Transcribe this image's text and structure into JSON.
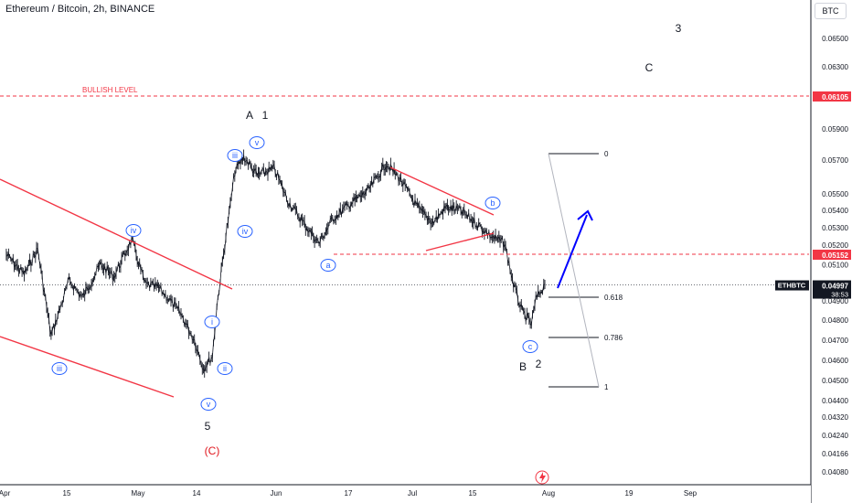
{
  "header": {
    "title": "Ethereum / Bitcoin, 2h, BINANCE",
    "currency_button": "BTC"
  },
  "chart_data": {
    "type": "line",
    "title": "Ethereum / Bitcoin, 2h, BINANCE",
    "xlabel": "",
    "ylabel": "",
    "ylim": [
      0.0403,
      0.0668
    ],
    "y_ticks": [
      "0.06500",
      "0.06300",
      "0.05900",
      "0.05700",
      "0.05500",
      "0.05400",
      "0.05300",
      "0.05200",
      "0.05100",
      "0.04900",
      "0.04800",
      "0.04700",
      "0.04600",
      "0.04500",
      "0.04400",
      "0.04320",
      "0.04240",
      "0.04166",
      "0.04080"
    ],
    "x_ticks": [
      "Apr",
      "15",
      "May",
      "14",
      "Jun",
      "17",
      "Jul",
      "15",
      "Aug",
      "19",
      "Sep"
    ],
    "series": [
      {
        "x": [
          "Apr 2",
          "Apr 6",
          "Apr 9",
          "Apr 12",
          "Apr 16",
          "Apr 19",
          "Apr 23",
          "Apr 26",
          "Apr 30",
          "May 3",
          "May 6",
          "May 8",
          "May 11",
          "May 14",
          "May 16",
          "May 18",
          "May 19",
          "May 21",
          "May 22",
          "May 23",
          "May 25",
          "May 28",
          "Jun 1",
          "Jun 4",
          "Jun 8",
          "Jun 11",
          "Jun 14",
          "Jun 18",
          "Jun 22",
          "Jun 26",
          "Jun 29",
          "Jul 3",
          "Jul 6",
          "Jul 9",
          "Jul 12",
          "Jul 16",
          "Jul 19",
          "Jul 22",
          "Jul 24",
          "Jul 26",
          "Jul 28",
          "Jul 29",
          "Jul 31"
        ],
        "y": [
          0.0515,
          0.0505,
          0.0518,
          0.0472,
          0.0502,
          0.0492,
          0.051,
          0.0504,
          0.0523,
          0.05,
          0.0498,
          0.0492,
          0.0483,
          0.047,
          0.0456,
          0.0462,
          0.0487,
          0.0525,
          0.0543,
          0.0563,
          0.0572,
          0.0561,
          0.0565,
          0.0546,
          0.0531,
          0.0521,
          0.0535,
          0.0544,
          0.0552,
          0.0568,
          0.0559,
          0.054,
          0.0533,
          0.0542,
          0.054,
          0.0532,
          0.0525,
          0.0521,
          0.05,
          0.0484,
          0.0478,
          0.0491,
          0.05
        ]
      }
    ],
    "last_price": "0.04997",
    "last_price_countdown": "38:53",
    "symbol_tag": "ETHBTC",
    "levels": {
      "bullish_label": "BULLISH LEVEL",
      "bullish_price": "0.06105",
      "support_price": "0.05152"
    },
    "fibonacci": [
      "0",
      "0.618",
      "0.786",
      "1"
    ],
    "wave_labels": {
      "waves_minor": [
        "iii",
        "iv",
        "v",
        "i",
        "ii",
        "iii",
        "iv",
        "v",
        "a",
        "b",
        "c"
      ],
      "A": "A",
      "one": "1",
      "B": "B",
      "two": "2",
      "three": "3",
      "C": "C",
      "five": "5",
      "C_paren": "(C)"
    },
    "colors": {
      "candles": "#131722",
      "trendlines": "#f23645",
      "bullish_line": "#f23645",
      "wave_circles": "#2962ff",
      "projection_arrow": "#0000ff",
      "fib_lines": "#131722",
      "fib_diagonal": "#b2b5be",
      "c_paren_text": "#e0161d"
    },
    "grid": false,
    "legend": "none"
  }
}
